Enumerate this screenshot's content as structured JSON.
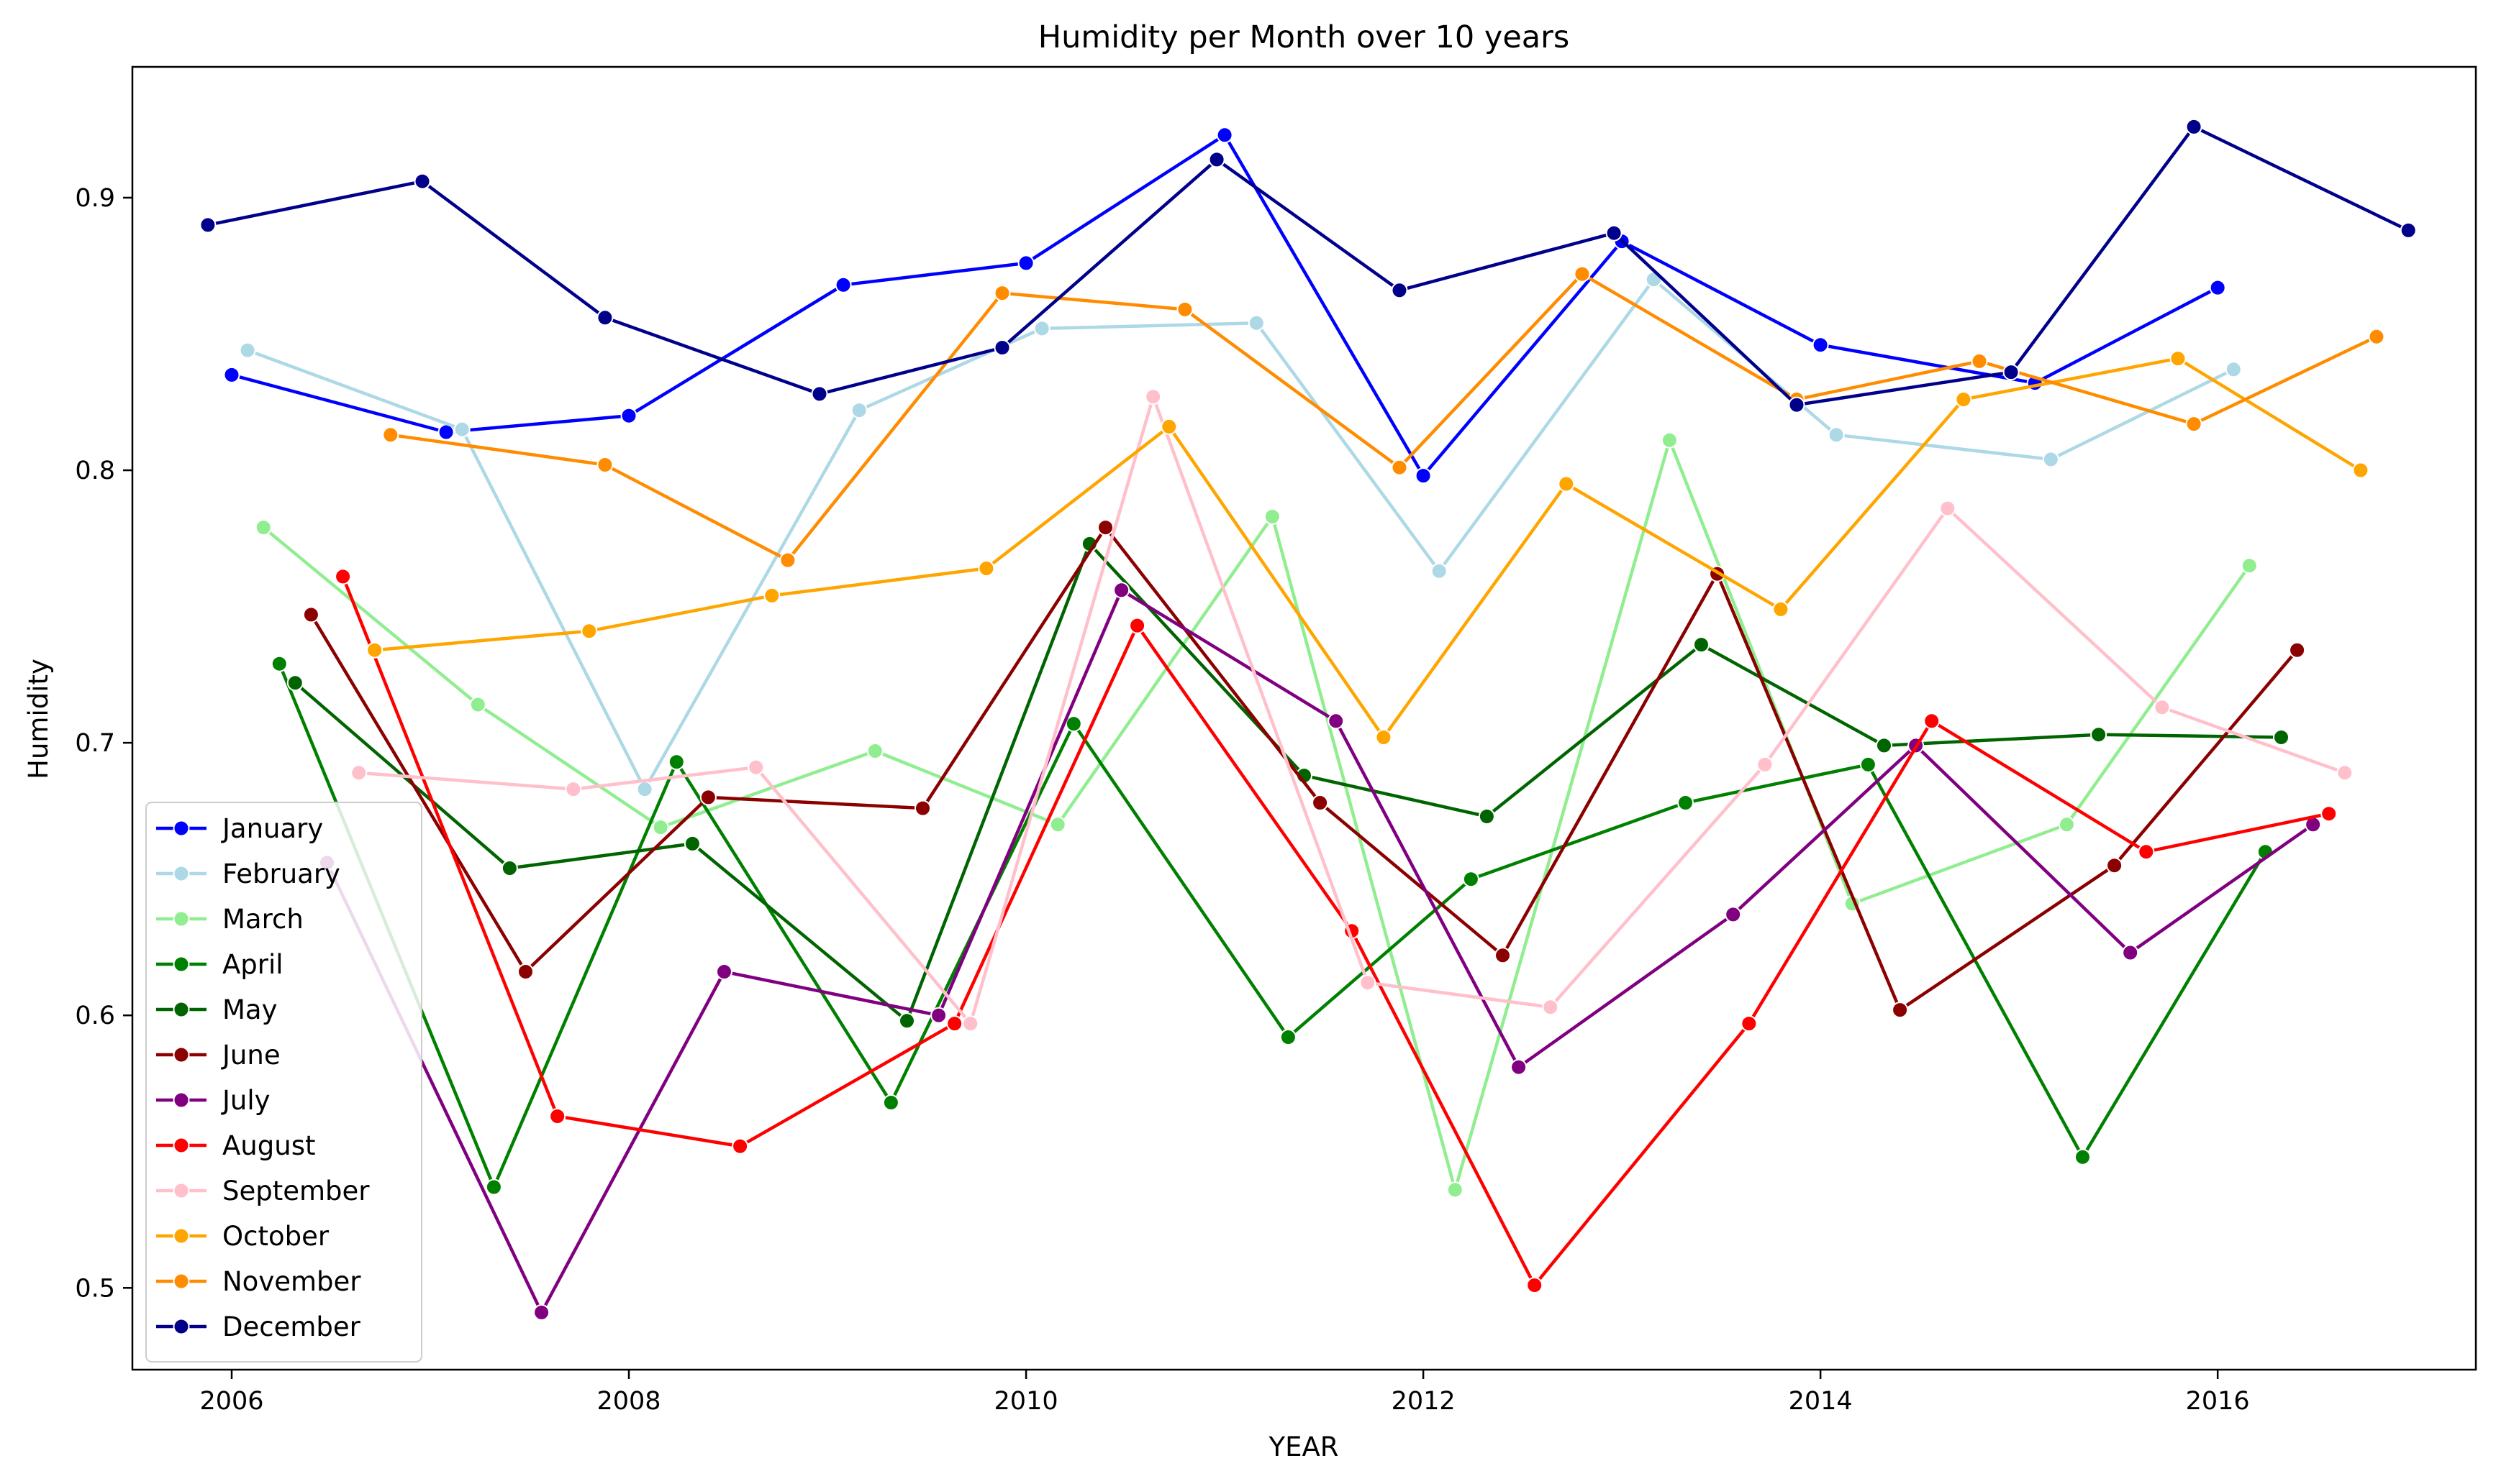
{
  "chart_data": {
    "type": "line",
    "title": "Humidity per Month over 10 years",
    "xlabel": "YEAR",
    "ylabel": "Humidity",
    "xlim": [
      2005.5,
      2017.3
    ],
    "ylim": [
      0.47,
      0.948
    ],
    "x_ticks": [
      2006,
      2008,
      2010,
      2012,
      2014,
      2016
    ],
    "x_tick_labels": [
      "2006",
      "2008",
      "2010",
      "2012",
      "2014",
      "2016"
    ],
    "y_ticks": [
      0.5,
      0.6,
      0.7,
      0.8,
      0.9
    ],
    "y_tick_labels": [
      "0.5",
      "0.6",
      "0.7",
      "0.8",
      "0.9"
    ],
    "grid": false,
    "legend_position": "lower-left",
    "series": [
      {
        "name": "January",
        "color": "#0000ff",
        "points": [
          [
            2006.0,
            0.835
          ],
          [
            2007.08,
            0.814
          ],
          [
            2008.0,
            0.82
          ],
          [
            2009.08,
            0.868
          ],
          [
            2010.0,
            0.876
          ],
          [
            2011.0,
            0.923
          ],
          [
            2012.0,
            0.798
          ],
          [
            2013.0,
            0.884
          ],
          [
            2014.0,
            0.846
          ],
          [
            2015.08,
            0.832
          ],
          [
            2016.0,
            0.867
          ]
        ]
      },
      {
        "name": "February",
        "color": "#add8e6",
        "points": [
          [
            2006.08,
            0.844
          ],
          [
            2007.16,
            0.815
          ],
          [
            2008.08,
            0.683
          ],
          [
            2009.16,
            0.822
          ],
          [
            2010.08,
            0.852
          ],
          [
            2011.16,
            0.854
          ],
          [
            2012.08,
            0.763
          ],
          [
            2013.16,
            0.87
          ],
          [
            2014.08,
            0.813
          ],
          [
            2015.16,
            0.804
          ],
          [
            2016.08,
            0.837
          ]
        ]
      },
      {
        "name": "March",
        "color": "#90ee90",
        "points": [
          [
            2006.16,
            0.779
          ],
          [
            2007.24,
            0.714
          ],
          [
            2008.16,
            0.669
          ],
          [
            2009.24,
            0.697
          ],
          [
            2010.16,
            0.67
          ],
          [
            2011.24,
            0.783
          ],
          [
            2012.16,
            0.536
          ],
          [
            2013.24,
            0.811
          ],
          [
            2014.16,
            0.641
          ],
          [
            2015.24,
            0.67
          ],
          [
            2016.16,
            0.765
          ]
        ]
      },
      {
        "name": "April",
        "color": "#008000",
        "points": [
          [
            2006.24,
            0.729
          ],
          [
            2007.32,
            0.537
          ],
          [
            2008.24,
            0.693
          ],
          [
            2009.32,
            0.568
          ],
          [
            2010.24,
            0.707
          ],
          [
            2011.32,
            0.592
          ],
          [
            2012.24,
            0.65
          ],
          [
            2013.32,
            0.678
          ],
          [
            2014.24,
            0.692
          ],
          [
            2015.32,
            0.548
          ],
          [
            2016.24,
            0.66
          ]
        ]
      },
      {
        "name": "May",
        "color": "#006400",
        "points": [
          [
            2006.32,
            0.722
          ],
          [
            2007.4,
            0.654
          ],
          [
            2008.32,
            0.663
          ],
          [
            2009.4,
            0.598
          ],
          [
            2010.32,
            0.773
          ],
          [
            2011.4,
            0.688
          ],
          [
            2012.32,
            0.673
          ],
          [
            2013.4,
            0.736
          ],
          [
            2014.32,
            0.699
          ],
          [
            2015.4,
            0.703
          ],
          [
            2016.32,
            0.702
          ]
        ]
      },
      {
        "name": "June",
        "color": "#8b0000",
        "points": [
          [
            2006.4,
            0.747
          ],
          [
            2007.48,
            0.616
          ],
          [
            2008.4,
            0.68
          ],
          [
            2009.48,
            0.676
          ],
          [
            2010.4,
            0.779
          ],
          [
            2011.48,
            0.678
          ],
          [
            2012.4,
            0.622
          ],
          [
            2013.48,
            0.762
          ],
          [
            2014.4,
            0.602
          ],
          [
            2015.48,
            0.655
          ],
          [
            2016.4,
            0.734
          ]
        ]
      },
      {
        "name": "July",
        "color": "#800080",
        "points": [
          [
            2006.48,
            0.656
          ],
          [
            2007.56,
            0.491
          ],
          [
            2008.48,
            0.616
          ],
          [
            2009.56,
            0.6
          ],
          [
            2010.48,
            0.756
          ],
          [
            2011.56,
            0.708
          ],
          [
            2012.48,
            0.581
          ],
          [
            2013.56,
            0.637
          ],
          [
            2014.48,
            0.699
          ],
          [
            2015.56,
            0.623
          ],
          [
            2016.48,
            0.67
          ]
        ]
      },
      {
        "name": "August",
        "color": "#ff0000",
        "points": [
          [
            2006.56,
            0.761
          ],
          [
            2007.64,
            0.563
          ],
          [
            2008.56,
            0.552
          ],
          [
            2009.64,
            0.597
          ],
          [
            2010.56,
            0.743
          ],
          [
            2011.64,
            0.631
          ],
          [
            2012.56,
            0.501
          ],
          [
            2013.64,
            0.597
          ],
          [
            2014.56,
            0.708
          ],
          [
            2015.64,
            0.66
          ],
          [
            2016.56,
            0.674
          ]
        ]
      },
      {
        "name": "September",
        "color": "#ffc0cb",
        "points": [
          [
            2006.64,
            0.689
          ],
          [
            2007.72,
            0.683
          ],
          [
            2008.64,
            0.691
          ],
          [
            2009.72,
            0.597
          ],
          [
            2010.64,
            0.827
          ],
          [
            2011.72,
            0.612
          ],
          [
            2012.64,
            0.603
          ],
          [
            2013.72,
            0.692
          ],
          [
            2014.64,
            0.786
          ],
          [
            2015.72,
            0.713
          ],
          [
            2016.64,
            0.689
          ]
        ]
      },
      {
        "name": "October",
        "color": "#ffa500",
        "points": [
          [
            2006.72,
            0.734
          ],
          [
            2007.8,
            0.741
          ],
          [
            2008.72,
            0.754
          ],
          [
            2009.8,
            0.764
          ],
          [
            2010.72,
            0.816
          ],
          [
            2011.8,
            0.702
          ],
          [
            2012.72,
            0.795
          ],
          [
            2013.8,
            0.749
          ],
          [
            2014.72,
            0.826
          ],
          [
            2015.8,
            0.841
          ],
          [
            2016.72,
            0.8
          ]
        ]
      },
      {
        "name": "November",
        "color": "#ff8c00",
        "points": [
          [
            2006.8,
            0.813
          ],
          [
            2007.88,
            0.802
          ],
          [
            2008.8,
            0.767
          ],
          [
            2009.88,
            0.865
          ],
          [
            2010.8,
            0.859
          ],
          [
            2011.88,
            0.801
          ],
          [
            2012.8,
            0.872
          ],
          [
            2013.88,
            0.826
          ],
          [
            2014.8,
            0.84
          ],
          [
            2015.88,
            0.817
          ],
          [
            2016.8,
            0.849
          ]
        ]
      },
      {
        "name": "December",
        "color": "#00008b",
        "points": [
          [
            2005.88,
            0.89
          ],
          [
            2006.96,
            0.906
          ],
          [
            2007.88,
            0.856
          ],
          [
            2008.96,
            0.828
          ],
          [
            2009.88,
            0.845
          ],
          [
            2010.96,
            0.914
          ],
          [
            2011.88,
            0.866
          ],
          [
            2012.96,
            0.887
          ],
          [
            2013.88,
            0.824
          ],
          [
            2014.96,
            0.836
          ],
          [
            2015.88,
            0.926
          ],
          [
            2016.96,
            0.888
          ]
        ]
      }
    ]
  }
}
